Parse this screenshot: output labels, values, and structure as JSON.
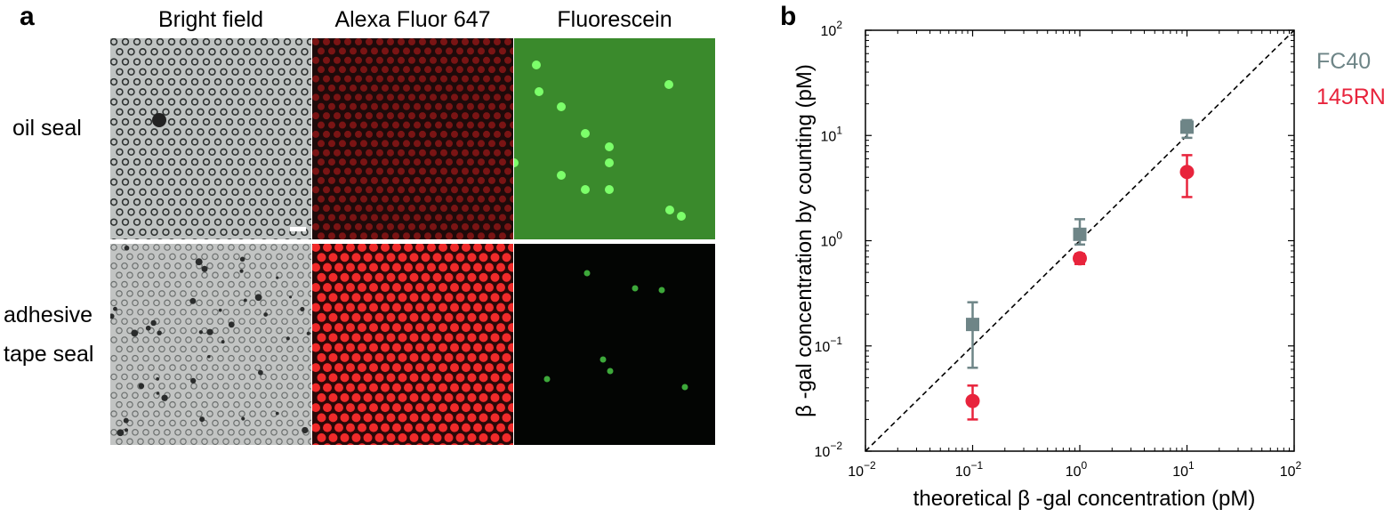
{
  "panel_a": {
    "label": "a",
    "columns": [
      "Bright field",
      "Alexa Fluor 647",
      "Fluorescein"
    ],
    "rows": [
      "oil seal",
      [
        "adhesive",
        "tape seal"
      ]
    ]
  },
  "panel_b": {
    "label": "b",
    "legend": [
      {
        "name": "FC40",
        "color": "#6e8587"
      },
      {
        "name": "145RN",
        "color": "#e8243c"
      }
    ]
  },
  "chart_data": {
    "type": "scatter",
    "title": "",
    "xlabel": "theoretical β -gal concentration (pM)",
    "ylabel": "β -gal concentration by counting (pM)",
    "xscale": "log",
    "yscale": "log",
    "xlim": [
      0.01,
      100
    ],
    "ylim": [
      0.01,
      100
    ],
    "x_ticks": [
      {
        "base": "10",
        "exp": "−2"
      },
      {
        "base": "10",
        "exp": "−1"
      },
      {
        "base": "10",
        "exp": "0"
      },
      {
        "base": "10",
        "exp": "1"
      },
      {
        "base": "10",
        "exp": "2"
      }
    ],
    "y_ticks": [
      {
        "base": "10",
        "exp": "−2"
      },
      {
        "base": "10",
        "exp": "−1"
      },
      {
        "base": "10",
        "exp": "0"
      },
      {
        "base": "10",
        "exp": "1"
      },
      {
        "base": "10",
        "exp": "2"
      }
    ],
    "reference_line": "y = x (dashed)",
    "series": [
      {
        "name": "FC40",
        "marker": "square",
        "color": "#6e8587",
        "points": [
          {
            "x": 0.1,
            "y": 0.16,
            "y_low": 0.062,
            "y_high": 0.26
          },
          {
            "x": 1,
            "y": 1.15,
            "y_low": 0.92,
            "y_high": 1.6
          },
          {
            "x": 10,
            "y": 12,
            "y_low": 9.5,
            "y_high": 14
          }
        ]
      },
      {
        "name": "145RN",
        "marker": "circle",
        "color": "#e8243c",
        "points": [
          {
            "x": 0.1,
            "y": 0.03,
            "y_low": 0.02,
            "y_high": 0.042
          },
          {
            "x": 1,
            "y": 0.68,
            "y_low": 0.6,
            "y_high": 0.75
          },
          {
            "x": 10,
            "y": 4.5,
            "y_low": 2.6,
            "y_high": 6.5
          }
        ]
      }
    ]
  }
}
